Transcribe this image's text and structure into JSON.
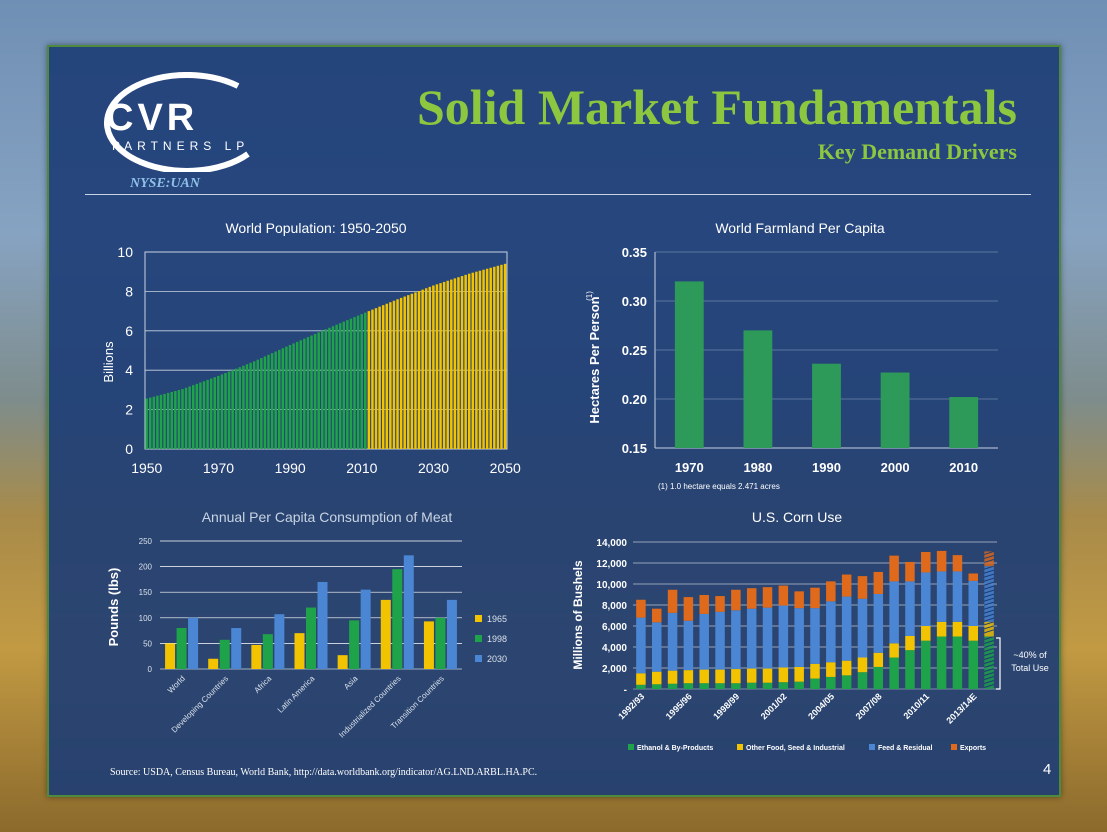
{
  "header": {
    "title": "Solid Market Fundamentals",
    "subtitle": "Key Demand Drivers",
    "ticker": "NYSE:UAN",
    "logo_main": "CVR",
    "logo_sub": "PARTNERS LP"
  },
  "footer": {
    "source": "Source: USDA, Census Bureau, World Bank, http://data.worldbank.org/indicator/AG.LND.ARBL.HA.PC.",
    "page_number": "4"
  },
  "colors": {
    "green": "#1fa34a",
    "yellow": "#f2c300",
    "blue": "#4a86d4",
    "orange": "#e06a1b",
    "title_green": "#8dc63f"
  },
  "chart_data": [
    {
      "type": "bar",
      "title": "World Population: 1950-2050",
      "ylabel": "Billions",
      "xlabel": "",
      "ylim": [
        0,
        10
      ],
      "yticks": [
        "0",
        "2",
        "4",
        "6",
        "8",
        "10"
      ],
      "xticks": [
        "1950",
        "1970",
        "1990",
        "2010",
        "2030",
        "2050"
      ],
      "x_start": 1950,
      "x_end": 2050,
      "actual_end_year": 2011,
      "series": [
        {
          "values_anchor_years": [
            1950,
            1960,
            1970,
            1980,
            1990,
            2000,
            2010,
            2020,
            2030,
            2040,
            2050
          ],
          "values": [
            2.56,
            3.04,
            3.71,
            4.45,
            5.28,
            6.08,
            6.85,
            7.6,
            8.3,
            8.9,
            9.4
          ]
        }
      ],
      "colors": {
        "actual": "#1fa34a",
        "projected": "#f2c300"
      }
    },
    {
      "type": "bar",
      "title": "World Farmland Per Capita",
      "ylabel": "Hectares Per Person",
      "ylabel_superscript": "(1)",
      "categories": [
        "1970",
        "1980",
        "1990",
        "2000",
        "2010"
      ],
      "values": [
        0.32,
        0.27,
        0.236,
        0.227,
        0.202
      ],
      "ylim": [
        0.15,
        0.35
      ],
      "yticks": [
        "0.15",
        "0.20",
        "0.25",
        "0.30",
        "0.35"
      ],
      "footnote": "(1) 1.0 hectare equals 2.471 acres",
      "color": "#2e9a5a"
    },
    {
      "type": "bar",
      "title": "Annual Per Capita Consumption of Meat",
      "ylabel": "Pounds (lbs)",
      "categories": [
        "World",
        "Developing Countries",
        "Africa",
        "Latin America",
        "Asia",
        "Industrialized Countries",
        "Transition Countries"
      ],
      "series": [
        {
          "name": "1965",
          "color": "#f2c300",
          "values": [
            50,
            20,
            47,
            70,
            27,
            135,
            93
          ]
        },
        {
          "name": "1998",
          "color": "#1fa34a",
          "values": [
            80,
            57,
            68,
            120,
            95,
            195,
            100
          ]
        },
        {
          "name": "2030",
          "color": "#4a86d4",
          "values": [
            100,
            80,
            107,
            170,
            155,
            222,
            135
          ]
        }
      ],
      "ylim": [
        0,
        250
      ],
      "yticks": [
        "0",
        "50",
        "100",
        "150",
        "200",
        "250"
      ]
    },
    {
      "type": "bar",
      "stacked": true,
      "title": "U.S. Corn Use",
      "ylabel": "Millions of Bushels",
      "ylim": [
        0,
        14000
      ],
      "yticks": [
        "-",
        "2,000",
        "4,000",
        "6,000",
        "8,000",
        "10,000",
        "12,000",
        "14,000"
      ],
      "xtick_labels": [
        "1992/93",
        "1995/96",
        "1998/99",
        "2001/02",
        "2004/05",
        "2007/08",
        "2010/11",
        "2013/14E"
      ],
      "series": [
        {
          "name": "Ethanol & By-Products",
          "color": "#1fa34a",
          "values": [
            400,
            450,
            500,
            550,
            550,
            550,
            550,
            600,
            600,
            650,
            700,
            1000,
            1150,
            1300,
            1600,
            2100,
            3000,
            3700,
            4600,
            5000,
            5000,
            4600,
            5000
          ]
        },
        {
          "name": "Other Food, Seed & Industrial",
          "color": "#f2c300",
          "values": [
            1100,
            1200,
            1250,
            1250,
            1300,
            1300,
            1350,
            1350,
            1350,
            1400,
            1400,
            1400,
            1400,
            1400,
            1400,
            1350,
            1350,
            1350,
            1400,
            1400,
            1400,
            1400,
            1400
          ]
        },
        {
          "name": "Feed & Residual",
          "color": "#4a86d4",
          "values": [
            5300,
            4700,
            5500,
            4700,
            5300,
            5500,
            5600,
            5700,
            5800,
            5900,
            5600,
            5300,
            5800,
            6100,
            5600,
            5600,
            5900,
            5200,
            5100,
            4800,
            4800,
            4300,
            5300
          ]
        },
        {
          "name": "Exports",
          "color": "#e06a1b",
          "values": [
            1700,
            1300,
            2200,
            2250,
            1800,
            1500,
            1950,
            1950,
            1950,
            1900,
            1600,
            1950,
            1900,
            2100,
            2150,
            2100,
            2450,
            1850,
            1950,
            1950,
            1550,
            700,
            1400
          ]
        }
      ],
      "projected_index": 22,
      "annotation": "~40% of Total Use"
    }
  ]
}
